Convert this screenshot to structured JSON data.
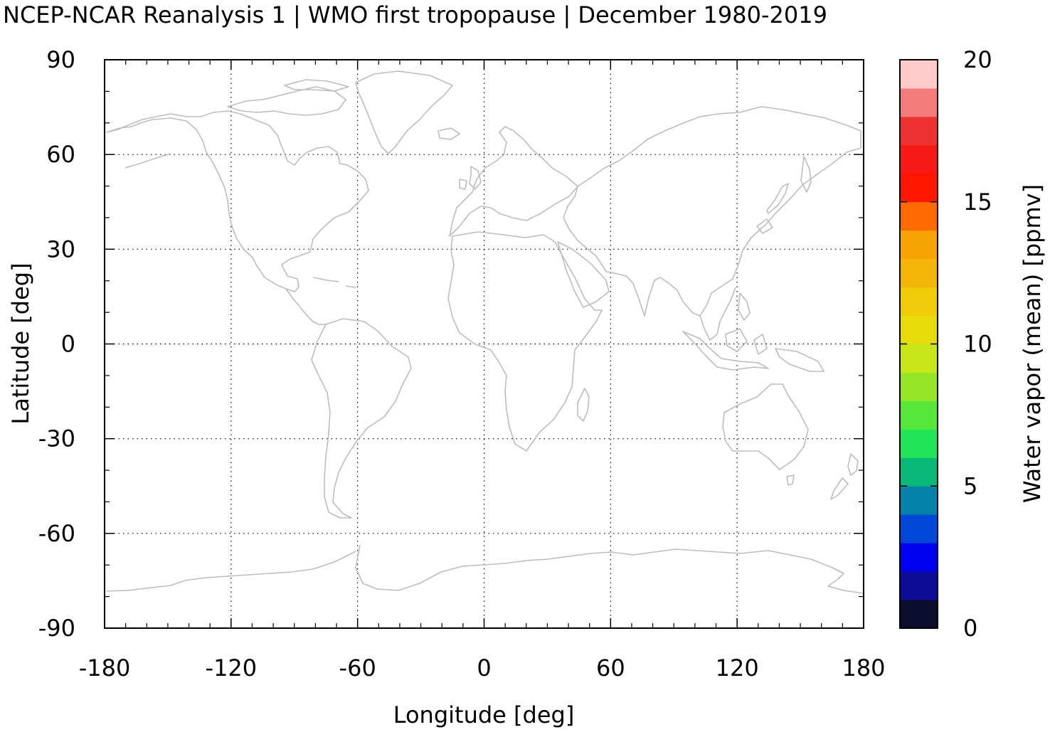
{
  "title": "NCEP-NCAR Reanalysis 1 | WMO first tropopause | December 1980-2019",
  "map": {
    "projection": "equirectangular",
    "lon_range": [
      -180,
      180
    ],
    "lat_range": [
      -90,
      90
    ],
    "grid": "dotted",
    "coastline_color": "#bdbdbd",
    "data_field": "empty"
  },
  "axes": {
    "xlabel": "Longitude [deg]",
    "ylabel": "Latitude [deg]",
    "x_ticks": [
      "-180",
      "-120",
      "-60",
      "0",
      "60",
      "120",
      "180"
    ],
    "y_ticks": [
      "90",
      "60",
      "30",
      "0",
      "-30",
      "-60",
      "-90"
    ]
  },
  "colorbar": {
    "label": "Water vapor (mean) [ppmv]",
    "range": [
      0,
      20
    ],
    "ticks": [
      "0",
      "5",
      "10",
      "15",
      "20"
    ],
    "colors": [
      "#0c0c2c",
      "#0c0c96",
      "#0000f0",
      "#0046d8",
      "#0580a8",
      "#08b878",
      "#20e658",
      "#58e83c",
      "#96e628",
      "#c8e618",
      "#e6dc0c",
      "#efcb08",
      "#f4b608",
      "#f8a304",
      "#ff6a00",
      "#ff1500",
      "#f61a14",
      "#ee3232",
      "#f47c7c",
      "#ffcaca"
    ]
  }
}
